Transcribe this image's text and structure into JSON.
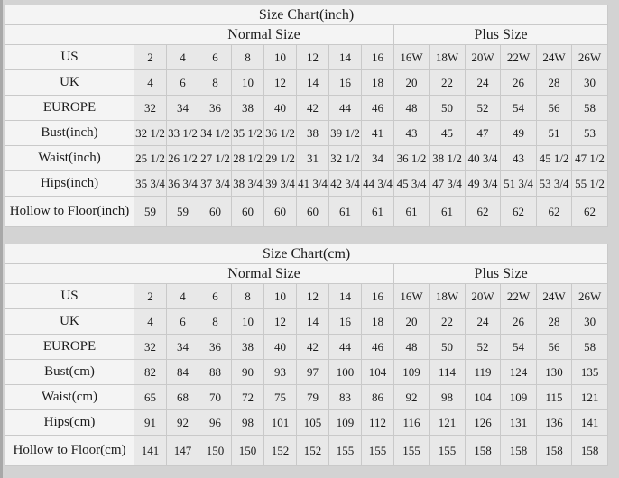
{
  "colors": {
    "page_background": "#d3d3d3",
    "header_cell_background": "#f4f4f4",
    "data_cell_background": "#e8e8e8",
    "grid_line": "#c9c9c9",
    "text": "#1c1c1c"
  },
  "chart_data": [
    {
      "type": "table",
      "title": "Size Chart(inch)",
      "group_headers": {
        "normal": "Normal Size",
        "plus": "Plus Size"
      },
      "normal_col_count": 8,
      "plus_col_count": 6,
      "rows": [
        {
          "label": "US",
          "values": [
            "2",
            "4",
            "6",
            "8",
            "10",
            "12",
            "14",
            "16",
            "16W",
            "18W",
            "20W",
            "22W",
            "24W",
            "26W"
          ]
        },
        {
          "label": "UK",
          "values": [
            "4",
            "6",
            "8",
            "10",
            "12",
            "14",
            "16",
            "18",
            "20",
            "22",
            "24",
            "26",
            "28",
            "30"
          ]
        },
        {
          "label": "EUROPE",
          "values": [
            "32",
            "34",
            "36",
            "38",
            "40",
            "42",
            "44",
            "46",
            "48",
            "50",
            "52",
            "54",
            "56",
            "58"
          ]
        },
        {
          "label": "Bust(inch)",
          "values": [
            "32 1/2",
            "33 1/2",
            "34 1/2",
            "35 1/2",
            "36 1/2",
            "38",
            "39 1/2",
            "41",
            "43",
            "45",
            "47",
            "49",
            "51",
            "53"
          ]
        },
        {
          "label": "Waist(inch)",
          "values": [
            "25 1/2",
            "26 1/2",
            "27 1/2",
            "28 1/2",
            "29 1/2",
            "31",
            "32 1/2",
            "34",
            "36 1/2",
            "38 1/2",
            "40 3/4",
            "43",
            "45 1/2",
            "47 1/2"
          ]
        },
        {
          "label": "Hips(inch)",
          "values": [
            "35 3/4",
            "36 3/4",
            "37 3/4",
            "38 3/4",
            "39 3/4",
            "41 3/4",
            "42 3/4",
            "44 3/4",
            "45 3/4",
            "47 3/4",
            "49 3/4",
            "51 3/4",
            "53 3/4",
            "55 1/2"
          ]
        },
        {
          "label": "Hollow to Floor(inch)",
          "values": [
            "59",
            "59",
            "60",
            "60",
            "60",
            "60",
            "61",
            "61",
            "61",
            "61",
            "62",
            "62",
            "62",
            "62"
          ]
        }
      ]
    },
    {
      "type": "table",
      "title": "Size Chart(cm)",
      "group_headers": {
        "normal": "Normal Size",
        "plus": "Plus Size"
      },
      "normal_col_count": 8,
      "plus_col_count": 6,
      "rows": [
        {
          "label": "US",
          "values": [
            "2",
            "4",
            "6",
            "8",
            "10",
            "12",
            "14",
            "16",
            "16W",
            "18W",
            "20W",
            "22W",
            "24W",
            "26W"
          ]
        },
        {
          "label": "UK",
          "values": [
            "4",
            "6",
            "8",
            "10",
            "12",
            "14",
            "16",
            "18",
            "20",
            "22",
            "24",
            "26",
            "28",
            "30"
          ]
        },
        {
          "label": "EUROPE",
          "values": [
            "32",
            "34",
            "36",
            "38",
            "40",
            "42",
            "44",
            "46",
            "48",
            "50",
            "52",
            "54",
            "56",
            "58"
          ]
        },
        {
          "label": "Bust(cm)",
          "values": [
            "82",
            "84",
            "88",
            "90",
            "93",
            "97",
            "100",
            "104",
            "109",
            "114",
            "119",
            "124",
            "130",
            "135"
          ]
        },
        {
          "label": "Waist(cm)",
          "values": [
            "65",
            "68",
            "70",
            "72",
            "75",
            "79",
            "83",
            "86",
            "92",
            "98",
            "104",
            "109",
            "115",
            "121"
          ]
        },
        {
          "label": "Hips(cm)",
          "values": [
            "91",
            "92",
            "96",
            "98",
            "101",
            "105",
            "109",
            "112",
            "116",
            "121",
            "126",
            "131",
            "136",
            "141"
          ]
        },
        {
          "label": "Hollow to Floor(cm)",
          "values": [
            "141",
            "147",
            "150",
            "150",
            "152",
            "152",
            "155",
            "155",
            "155",
            "155",
            "158",
            "158",
            "158",
            "158"
          ]
        }
      ]
    }
  ]
}
